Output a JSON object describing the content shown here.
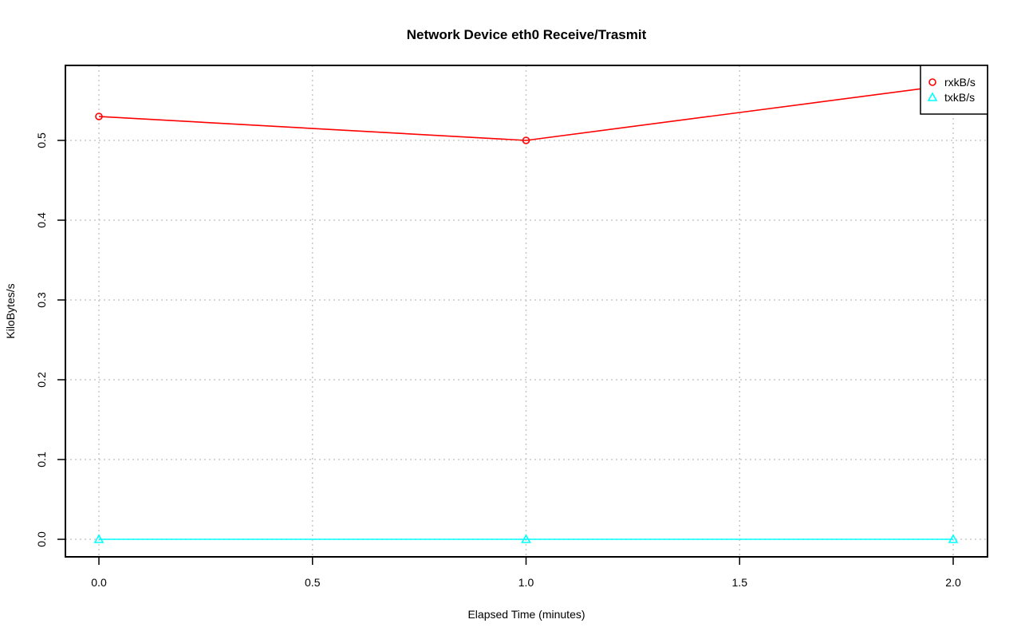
{
  "chart_data": {
    "type": "line",
    "title": "Network Device eth0 Receive/Trasmit",
    "xlabel": "Elapsed Time (minutes)",
    "ylabel": "KiloBytes/s",
    "x": [
      0.0,
      1.0,
      2.0
    ],
    "xlim": [
      -0.08,
      2.08
    ],
    "ylim": [
      -0.022,
      0.594
    ],
    "xticks": [
      "0.0",
      "0.5",
      "1.0",
      "1.5",
      "2.0"
    ],
    "yticks": [
      "0.0",
      "0.1",
      "0.2",
      "0.3",
      "0.4",
      "0.5"
    ],
    "grid": true,
    "legend_position": "top-right",
    "series": [
      {
        "name": "rxkB/s",
        "values": [
          0.53,
          0.5,
          0.57
        ],
        "color": "#ff0000",
        "marker": "circle"
      },
      {
        "name": "txkB/s",
        "values": [
          0.0,
          0.0,
          0.0
        ],
        "color": "#00ffff",
        "marker": "triangle"
      }
    ]
  }
}
